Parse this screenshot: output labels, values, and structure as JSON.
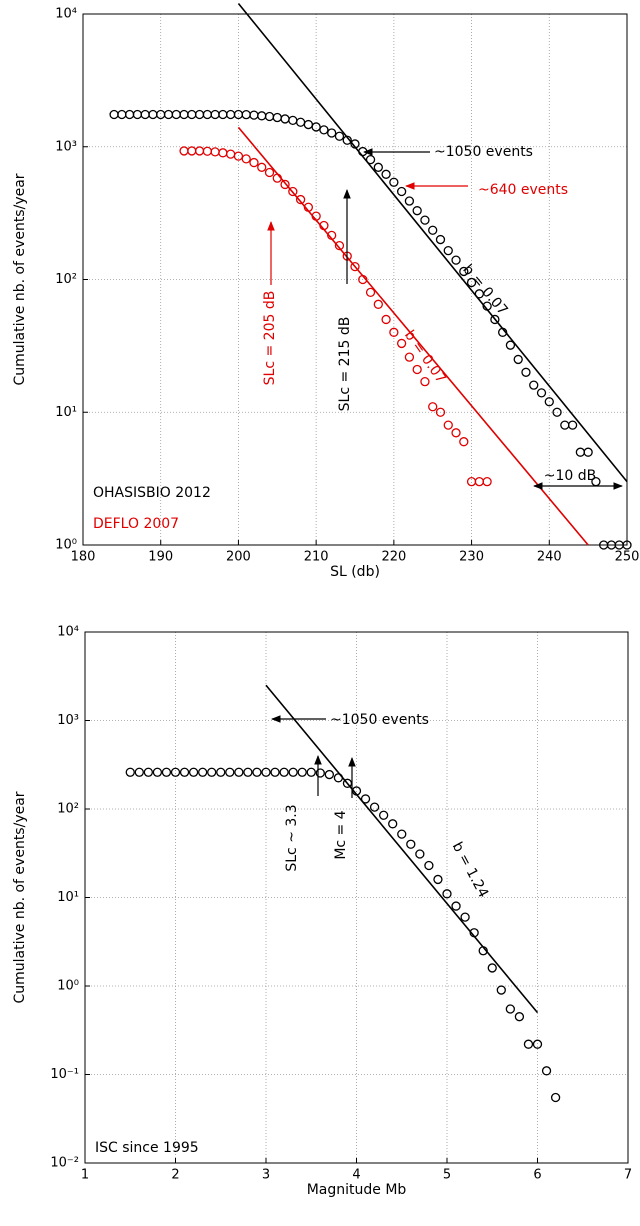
{
  "chart_data": [
    {
      "type": "scatter",
      "log_y": true,
      "grid": true,
      "xlabel": "SL (db)",
      "ylabel": "Cumulative nb. of events/year",
      "xlim": [
        180,
        250
      ],
      "xticks": [
        180,
        190,
        200,
        210,
        220,
        230,
        240,
        250
      ],
      "ylim": [
        1,
        10000
      ],
      "yticks": [
        {
          "value": 1,
          "label": "10⁰"
        },
        {
          "value": 10,
          "label": "10¹"
        },
        {
          "value": 100,
          "label": "10²"
        },
        {
          "value": 1000,
          "label": "10³"
        },
        {
          "value": 10000,
          "label": "10⁴"
        }
      ],
      "series": [
        {
          "name": "OHASISBIO 2012",
          "color": "#000000",
          "x": [
            184,
            185,
            186,
            187,
            188,
            189,
            190,
            191,
            192,
            193,
            194,
            195,
            196,
            197,
            198,
            199,
            200,
            201,
            202,
            203,
            204,
            205,
            206,
            207,
            208,
            209,
            210,
            211,
            212,
            213,
            214,
            215,
            216,
            217,
            218,
            219,
            220,
            221,
            222,
            223,
            224,
            225,
            226,
            227,
            228,
            229,
            230,
            231,
            232,
            233,
            234,
            235,
            236,
            237,
            238,
            239,
            240,
            241,
            242,
            243,
            244,
            245,
            246,
            247,
            248,
            249,
            250
          ],
          "values": [
            1750,
            1750,
            1750,
            1750,
            1750,
            1750,
            1750,
            1750,
            1750,
            1750,
            1750,
            1750,
            1750,
            1750,
            1750,
            1750,
            1750,
            1745,
            1730,
            1710,
            1690,
            1660,
            1620,
            1580,
            1530,
            1470,
            1410,
            1340,
            1270,
            1200,
            1120,
            1050,
            920,
            800,
            700,
            620,
            540,
            460,
            390,
            330,
            280,
            235,
            200,
            165,
            140,
            115,
            95,
            78,
            63,
            50,
            40,
            32,
            25,
            20,
            16,
            14,
            12,
            10,
            8,
            8,
            5,
            5,
            3,
            1,
            1,
            1,
            1
          ]
        },
        {
          "name": "DEFLO 2007",
          "color": "#e00000",
          "x": [
            193,
            194,
            195,
            196,
            197,
            198,
            199,
            200,
            201,
            202,
            203,
            204,
            205,
            206,
            207,
            208,
            209,
            210,
            211,
            212,
            213,
            214,
            215,
            216,
            217,
            218,
            219,
            220,
            221,
            222,
            223,
            224,
            225,
            226,
            227,
            228,
            229,
            230,
            231,
            232
          ],
          "values": [
            930,
            930,
            930,
            925,
            915,
            900,
            880,
            850,
            810,
            760,
            700,
            640,
            580,
            520,
            460,
            400,
            350,
            300,
            255,
            215,
            180,
            150,
            125,
            100,
            80,
            65,
            50,
            40,
            33,
            26,
            21,
            17,
            11,
            10,
            8,
            7,
            6,
            3,
            3,
            3
          ]
        }
      ],
      "fits": [
        {
          "color": "#000000",
          "x": [
            200,
            250
          ],
          "values": [
            12000,
            3
          ]
        },
        {
          "color": "#e00000",
          "x": [
            200,
            245
          ],
          "values": [
            1400,
            1
          ]
        }
      ],
      "annotations": [
        {
          "text": "~1050 events",
          "color": "#000000"
        },
        {
          "text": "~640 events",
          "color": "#e00000"
        },
        {
          "text": "b = 0.07",
          "color": "#000000"
        },
        {
          "text": "b = 0.07",
          "color": "#e00000"
        },
        {
          "text": "SLc = 215 dB",
          "color": "#000000"
        },
        {
          "text": "SLc = 205 dB",
          "color": "#e00000"
        },
        {
          "text": "~10 dB",
          "color": "#000000"
        }
      ]
    },
    {
      "type": "scatter",
      "log_y": true,
      "grid": true,
      "xlabel": "Magnitude Mb",
      "ylabel": "Cumulative nb. of events/year",
      "xlim": [
        1,
        7
      ],
      "xticks": [
        1,
        2,
        3,
        4,
        5,
        6,
        7
      ],
      "ylim": [
        0.01,
        10000
      ],
      "yticks": [
        {
          "value": 0.01,
          "label": "10⁻²"
        },
        {
          "value": 0.1,
          "label": "10⁻¹"
        },
        {
          "value": 1,
          "label": "10⁰"
        },
        {
          "value": 10,
          "label": "10¹"
        },
        {
          "value": 100,
          "label": "10²"
        },
        {
          "value": 1000,
          "label": "10³"
        },
        {
          "value": 10000,
          "label": "10⁴"
        }
      ],
      "series": [
        {
          "name": "ISC since 1995",
          "color": "#000000",
          "x": [
            1.5,
            1.6,
            1.7,
            1.8,
            1.9,
            2.0,
            2.1,
            2.2,
            2.3,
            2.4,
            2.5,
            2.6,
            2.7,
            2.8,
            2.9,
            3.0,
            3.1,
            3.2,
            3.3,
            3.4,
            3.5,
            3.6,
            3.7,
            3.8,
            3.9,
            4.0,
            4.1,
            4.2,
            4.3,
            4.4,
            4.5,
            4.6,
            4.7,
            4.8,
            4.9,
            5.0,
            5.1,
            5.2,
            5.3,
            5.4,
            5.5,
            5.6,
            5.7,
            5.8,
            5.9,
            6.0,
            6.1,
            6.2
          ],
          "values": [
            260,
            260,
            260,
            260,
            260,
            260,
            260,
            260,
            260,
            260,
            260,
            260,
            260,
            260,
            260,
            260,
            260,
            260,
            260,
            260,
            260,
            255,
            245,
            225,
            195,
            160,
            130,
            105,
            85,
            68,
            52,
            40,
            31,
            23,
            16,
            11,
            8,
            6,
            4,
            2.5,
            1.6,
            0.9,
            0.55,
            0.45,
            0.22,
            0.22,
            0.11,
            0.055
          ]
        }
      ],
      "fits": [
        {
          "color": "#000000",
          "x": [
            3,
            6
          ],
          "values": [
            2500,
            0.5
          ]
        }
      ],
      "annotations": [
        {
          "text": "~1050 events",
          "color": "#000000"
        },
        {
          "text": "b = 1.24",
          "color": "#000000"
        },
        {
          "text": "SLc ~ 3.3",
          "color": "#000000"
        },
        {
          "text": "Mc = 4",
          "color": "#000000"
        }
      ]
    }
  ]
}
